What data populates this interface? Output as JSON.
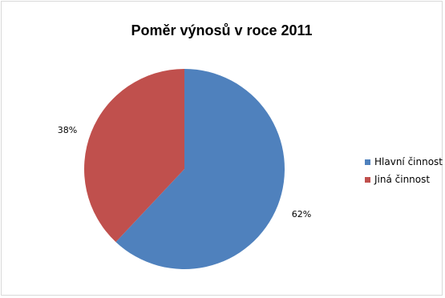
{
  "chart_data": {
    "type": "pie",
    "title": "Poměr výnosů v roce 2011",
    "categories": [
      "Hlavní činnost",
      "Jiná činnost"
    ],
    "values": [
      62,
      38
    ],
    "labels": [
      "62%",
      "38%"
    ],
    "colors": [
      "#4f81bd",
      "#c0504d"
    ],
    "legend_position": "right"
  }
}
